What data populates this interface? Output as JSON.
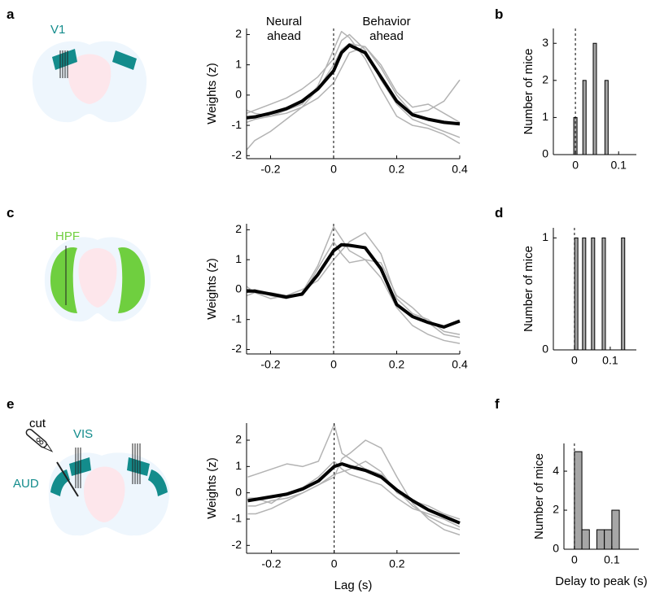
{
  "panel_labels": [
    "a",
    "b",
    "c",
    "d",
    "e",
    "f"
  ],
  "diagram_labels": [
    "V1",
    "HPF",
    "cut",
    "VIS",
    "AUD"
  ],
  "chart_data": [
    {
      "type": "line",
      "ylabel": "Weights (z)",
      "annotations": [
        "Neural ahead",
        "Behavior ahead"
      ],
      "x": [
        -0.275,
        -0.25,
        -0.2,
        -0.15,
        -0.1,
        -0.05,
        0,
        0.025,
        0.05,
        0.1,
        0.15,
        0.2,
        0.25,
        0.3,
        0.35,
        0.4
      ],
      "xlim": [
        -0.276,
        0.4
      ],
      "xticks": [
        -0.2,
        0,
        0.2,
        0.4
      ],
      "ylim": [
        -2.1,
        2.2
      ],
      "yticks": [
        -2,
        -1,
        0,
        1,
        2
      ],
      "zero_line": true,
      "series": [
        {
          "color": "#b3b3b3",
          "values": [
            -0.6,
            -0.5,
            -0.3,
            -0.1,
            0.2,
            0.6,
            1.2,
            1.8,
            2.0,
            1.5,
            0.5,
            -0.3,
            -0.8,
            -1.0,
            -1.2,
            -1.4
          ]
        },
        {
          "color": "#b3b3b3",
          "values": [
            -1.8,
            -1.5,
            -1.2,
            -0.8,
            -0.4,
            0.2,
            1.0,
            1.5,
            1.7,
            1.6,
            0.9,
            0.0,
            -0.6,
            -0.5,
            -0.2,
            0.5
          ]
        },
        {
          "color": "#b3b3b3",
          "values": [
            -0.5,
            -0.6,
            -0.7,
            -0.5,
            -0.3,
            0.3,
            1.5,
            2.1,
            1.9,
            1.2,
            0.2,
            -0.7,
            -1.0,
            -1.1,
            -1.3,
            -1.6
          ]
        },
        {
          "color": "#b3b3b3",
          "values": [
            -0.9,
            -0.8,
            -0.7,
            -0.6,
            -0.4,
            -0.1,
            0.4,
            0.9,
            1.4,
            1.6,
            1.0,
            0.1,
            -0.4,
            -0.3,
            -0.6,
            -0.9
          ]
        },
        {
          "color": "#000000",
          "values": [
            -0.75,
            -0.72,
            -0.6,
            -0.45,
            -0.2,
            0.2,
            0.8,
            1.4,
            1.65,
            1.4,
            0.6,
            -0.2,
            -0.65,
            -0.8,
            -0.9,
            -0.95
          ]
        }
      ]
    },
    {
      "type": "bar",
      "ylabel": "Number of mice",
      "x": [
        0,
        0.021,
        0.045,
        0.072
      ],
      "values": [
        1,
        2,
        3,
        2
      ],
      "color": "#a6a6a6",
      "xlim": [
        -0.051,
        0.141
      ],
      "xticks": [
        0,
        0.1
      ],
      "ylim": [
        0,
        3.4
      ],
      "yticks": [
        0,
        1,
        2,
        3
      ],
      "zero_line": true
    },
    {
      "type": "line",
      "ylabel": "Weights (z)",
      "x": [
        -0.275,
        -0.25,
        -0.2,
        -0.15,
        -0.1,
        -0.05,
        0,
        0.025,
        0.05,
        0.1,
        0.15,
        0.2,
        0.25,
        0.3,
        0.35,
        0.4
      ],
      "xlim": [
        -0.276,
        0.4
      ],
      "xticks": [
        -0.2,
        0,
        0.2,
        0.4
      ],
      "ylim": [
        -2.15,
        2.2
      ],
      "yticks": [
        -2,
        -1,
        0,
        1,
        2
      ],
      "zero_line": true,
      "series": [
        {
          "color": "#b3b3b3",
          "values": [
            -0.1,
            0,
            -0.2,
            -0.3,
            -0.1,
            0.8,
            2.1,
            1.7,
            1.3,
            1.0,
            0.4,
            -0.6,
            -1.2,
            -1.5,
            -1.7,
            -1.8
          ]
        },
        {
          "color": "#b3b3b3",
          "values": [
            0.1,
            -0.1,
            -0.1,
            -0.2,
            0.0,
            0.3,
            1.0,
            1.3,
            1.6,
            1.9,
            1.2,
            -0.3,
            -0.8,
            -1.0,
            -1.4,
            -1.5
          ]
        },
        {
          "color": "#b3b3b3",
          "values": [
            -0.2,
            -0.1,
            -0.3,
            -0.2,
            -0.2,
            0.7,
            1.6,
            1.2,
            0.9,
            1.0,
            0.9,
            -0.2,
            -0.6,
            -1.1,
            -1.5,
            -1.6
          ]
        },
        {
          "color": "#000000",
          "values": [
            -0.05,
            -0.05,
            -0.15,
            -0.25,
            -0.15,
            0.5,
            1.3,
            1.5,
            1.48,
            1.4,
            0.7,
            -0.5,
            -0.9,
            -1.1,
            -1.25,
            -1.05
          ]
        }
      ]
    },
    {
      "type": "bar",
      "ylabel": "Number of mice",
      "x": [
        0.005,
        0.027,
        0.052,
        0.082,
        0.136
      ],
      "values": [
        1,
        1,
        1,
        1,
        1
      ],
      "color": "#a6a6a6",
      "xlim": [
        -0.059,
        0.173
      ],
      "xticks": [
        0,
        0.1
      ],
      "ylim": [
        0,
        1.09
      ],
      "yticks": [
        0,
        1
      ],
      "zero_line": true
    },
    {
      "type": "line",
      "ylabel": "Weights (z)",
      "xlabel": "Lag (s)",
      "x": [
        -0.275,
        -0.25,
        -0.2,
        -0.15,
        -0.1,
        -0.05,
        0,
        0.025,
        0.05,
        0.1,
        0.15,
        0.2,
        0.25,
        0.3,
        0.35,
        0.4
      ],
      "xlim": [
        -0.279,
        0.4
      ],
      "xticks": [
        -0.2,
        0,
        0.2
      ],
      "ylim": [
        -2.3,
        2.65
      ],
      "yticks": [
        -2,
        -1,
        0,
        1,
        2
      ],
      "zero_line": true,
      "series": [
        {
          "color": "#b3b3b3",
          "values": [
            0.6,
            0.7,
            0.9,
            1.1,
            1.0,
            1.2,
            2.6,
            1.5,
            1.3,
            0.9,
            0.7,
            0.1,
            -0.5,
            -0.9,
            -1.2,
            -1.4
          ]
        },
        {
          "color": "#b3b3b3",
          "values": [
            -0.5,
            -0.5,
            -0.3,
            -0.2,
            0.0,
            0.3,
            0.6,
            1.3,
            1.5,
            2.0,
            1.7,
            0.6,
            -0.4,
            -1.0,
            -1.4,
            -1.6
          ]
        },
        {
          "color": "#b3b3b3",
          "values": [
            -0.2,
            -0.2,
            -0.4,
            0.0,
            0.2,
            0.6,
            1.2,
            0.9,
            0.7,
            0.5,
            0.3,
            -0.2,
            -0.6,
            -0.8,
            -1.0,
            -1.3
          ]
        },
        {
          "color": "#b3b3b3",
          "values": [
            -0.8,
            -0.8,
            -0.6,
            -0.3,
            0.0,
            0.3,
            0.7,
            0.8,
            0.9,
            1.2,
            0.8,
            0.0,
            -0.3,
            -0.5,
            -0.8,
            -1.0
          ]
        },
        {
          "color": "#000000",
          "values": [
            -0.3,
            -0.25,
            -0.15,
            -0.05,
            0.15,
            0.45,
            1.0,
            1.1,
            1.0,
            0.85,
            0.6,
            0.1,
            -0.3,
            -0.65,
            -0.9,
            -1.15
          ]
        }
      ]
    },
    {
      "type": "histogram",
      "ylabel": "Number of mice",
      "xlabel": "Delay to peak (s)",
      "bins": [
        0,
        0.02,
        0.04,
        0.06,
        0.08,
        0.1,
        0.12
      ],
      "values": [
        5,
        1,
        0,
        1,
        1,
        2
      ],
      "color": "#a6a6a6",
      "xlim": [
        -0.028,
        0.172
      ],
      "xticks": [
        0,
        0.1
      ],
      "ylim": [
        0,
        5.42
      ],
      "yticks": [
        0,
        2,
        4
      ],
      "zero_line": true
    }
  ]
}
